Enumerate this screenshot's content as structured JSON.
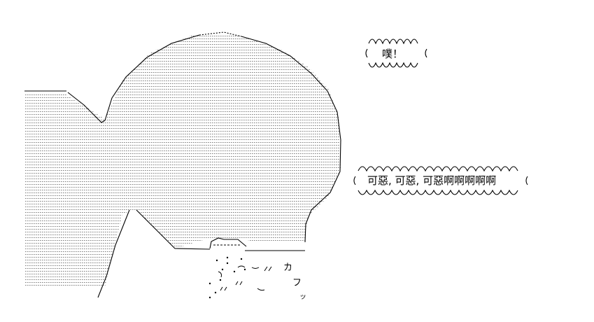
{
  "bubble_small": {
    "text": "噗！"
  },
  "bubble_large": {
    "text": "可惡, 可惡, 可惡啊啊啊啊啊"
  },
  "sfx": [
    {
      "id": "ka",
      "text": "カ"
    },
    {
      "id": "fu",
      "text": "フ"
    },
    {
      "id": "small-tsu",
      "text": "ッ"
    }
  ],
  "colors": {
    "ink": "#000000",
    "paper": "#ffffff"
  }
}
